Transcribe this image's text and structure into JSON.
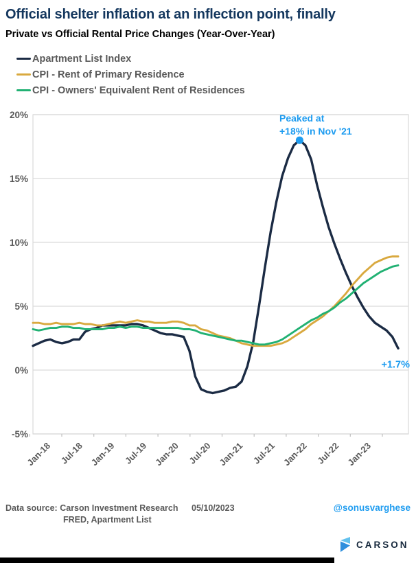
{
  "header": {
    "title": "Official shelter inflation at an inflection point, finally",
    "subtitle": "Private vs Official Rental Price Changes (Year-Over-Year)"
  },
  "legend": [
    {
      "label": "Apartment List Index"
    },
    {
      "label": "CPI - Rent of Primary Residence"
    },
    {
      "label": "CPI - Owners' Equivalent Rent of Residences"
    }
  ],
  "colors": {
    "title_navy": "#14375e",
    "axis_gray": "#595959",
    "grid_gray": "#d9d9d9",
    "annotation_blue": "#1e9cf0",
    "black_bar": "#000000",
    "brand_navy": "#16283c",
    "logo_light_blue": "#62c1ee",
    "logo_dark_blue": "#2e8fdd"
  },
  "chart_data": {
    "type": "line",
    "title": "Private vs Official Rental Price Changes (Year-Over-Year)",
    "x_start": "Jan-18",
    "x_end": "Apr-23",
    "x_tick_labels": [
      "Jan-18",
      "Jul-18",
      "Jan-19",
      "Jul-19",
      "Jan-20",
      "Jul-20",
      "Jan-21",
      "Jul-21",
      "Jan-22",
      "Jul-22",
      "Jan-23"
    ],
    "y_ticks": [
      {
        "label": "20%",
        "value": 20
      },
      {
        "label": "15%",
        "value": 15
      },
      {
        "label": "10%",
        "value": 10
      },
      {
        "label": "5%",
        "value": 5
      },
      {
        "label": "0%",
        "value": 0
      },
      {
        "label": "-5%",
        "value": -5
      }
    ],
    "ylim": [
      -5,
      20
    ],
    "grid": true,
    "legend_position": "top-left",
    "series": [
      {
        "name": "Apartment List Index",
        "color": "#1b2b44",
        "values": [
          1.9,
          2.1,
          2.3,
          2.4,
          2.2,
          2.1,
          2.2,
          2.4,
          2.4,
          3.0,
          3.2,
          3.3,
          3.5,
          3.5,
          3.5,
          3.5,
          3.5,
          3.6,
          3.6,
          3.5,
          3.3,
          3.1,
          2.9,
          2.8,
          2.8,
          2.7,
          2.6,
          1.5,
          -0.5,
          -1.5,
          -1.7,
          -1.8,
          -1.7,
          -1.6,
          -1.4,
          -1.3,
          -0.9,
          0.3,
          2.2,
          5.0,
          8.0,
          10.8,
          13.2,
          15.2,
          16.6,
          17.6,
          18.0,
          17.6,
          16.5,
          14.5,
          12.8,
          11.2,
          9.9,
          8.7,
          7.6,
          6.6,
          5.7,
          4.9,
          4.2,
          3.7,
          3.4,
          3.1,
          2.6,
          1.7
        ]
      },
      {
        "name": "CPI - Rent of Primary Residence",
        "color": "#d9a93f",
        "values": [
          3.7,
          3.7,
          3.6,
          3.6,
          3.7,
          3.6,
          3.6,
          3.6,
          3.7,
          3.6,
          3.6,
          3.5,
          3.5,
          3.6,
          3.7,
          3.8,
          3.7,
          3.8,
          3.9,
          3.8,
          3.8,
          3.7,
          3.7,
          3.7,
          3.8,
          3.8,
          3.7,
          3.5,
          3.5,
          3.2,
          3.1,
          2.9,
          2.7,
          2.6,
          2.5,
          2.3,
          2.1,
          2.0,
          1.9,
          1.9,
          1.9,
          1.9,
          2.0,
          2.1,
          2.3,
          2.6,
          2.9,
          3.2,
          3.6,
          3.9,
          4.2,
          4.6,
          5.0,
          5.5,
          6.0,
          6.6,
          7.1,
          7.6,
          8.0,
          8.4,
          8.6,
          8.8,
          8.9,
          8.9
        ]
      },
      {
        "name": "CPI - Owners' Equivalent Rent of Residences",
        "color": "#21b173",
        "values": [
          3.2,
          3.1,
          3.2,
          3.3,
          3.3,
          3.4,
          3.4,
          3.3,
          3.3,
          3.2,
          3.2,
          3.2,
          3.2,
          3.3,
          3.3,
          3.4,
          3.3,
          3.4,
          3.4,
          3.3,
          3.3,
          3.3,
          3.3,
          3.3,
          3.3,
          3.3,
          3.2,
          3.2,
          3.1,
          2.9,
          2.8,
          2.7,
          2.6,
          2.5,
          2.4,
          2.3,
          2.3,
          2.2,
          2.1,
          2.0,
          2.0,
          2.1,
          2.2,
          2.4,
          2.7,
          3.0,
          3.3,
          3.6,
          3.9,
          4.1,
          4.4,
          4.6,
          4.9,
          5.3,
          5.6,
          6.0,
          6.4,
          6.8,
          7.1,
          7.4,
          7.7,
          7.9,
          8.1,
          8.2
        ]
      }
    ],
    "annotations": {
      "peak_line1": "Peaked at",
      "peak_line2": "+18% in Nov '21",
      "peak_series": 0,
      "peak_index": 46,
      "peak_value": 18,
      "end_label": "+1.7%",
      "end_value": 1.7
    }
  },
  "footer": {
    "data_source_label": "Data source:",
    "source_org": "Carson Investment Research",
    "source_line2": "FRED, Apartment List",
    "date": "05/10/2023",
    "handle": "@sonusvarghese",
    "brand": "CARSON"
  }
}
